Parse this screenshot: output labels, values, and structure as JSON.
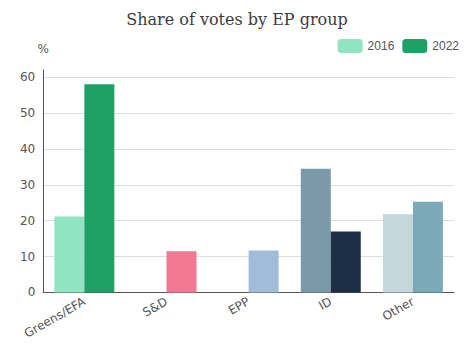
{
  "chart_data": {
    "type": "bar",
    "title": "Share of votes by EP group",
    "ylabel": "%",
    "categories": [
      "Greens/EFA",
      "S&D",
      "EPP",
      "ID",
      "Other"
    ],
    "series": [
      {
        "name": "2016",
        "color": "#90e4c1",
        "colors": [
          "#90e4c1",
          "#f4a0a8",
          "#b0cde0",
          "#7a9aaa",
          "#c4d8dc"
        ],
        "values": [
          21.2,
          0,
          0,
          34.5,
          21.8
        ]
      },
      {
        "name": "2022",
        "color": "#1fa065",
        "colors": [
          "#1fa065",
          "#f07890",
          "#a0bcd8",
          "#1c2f45",
          "#7aaab8"
        ],
        "values": [
          58.0,
          11.5,
          11.7,
          17.0,
          25.3
        ]
      }
    ],
    "ylim": [
      0,
      62
    ],
    "yticks": [
      0,
      10,
      20,
      30,
      40,
      50,
      60
    ],
    "grid": true,
    "legend": "upper right"
  }
}
